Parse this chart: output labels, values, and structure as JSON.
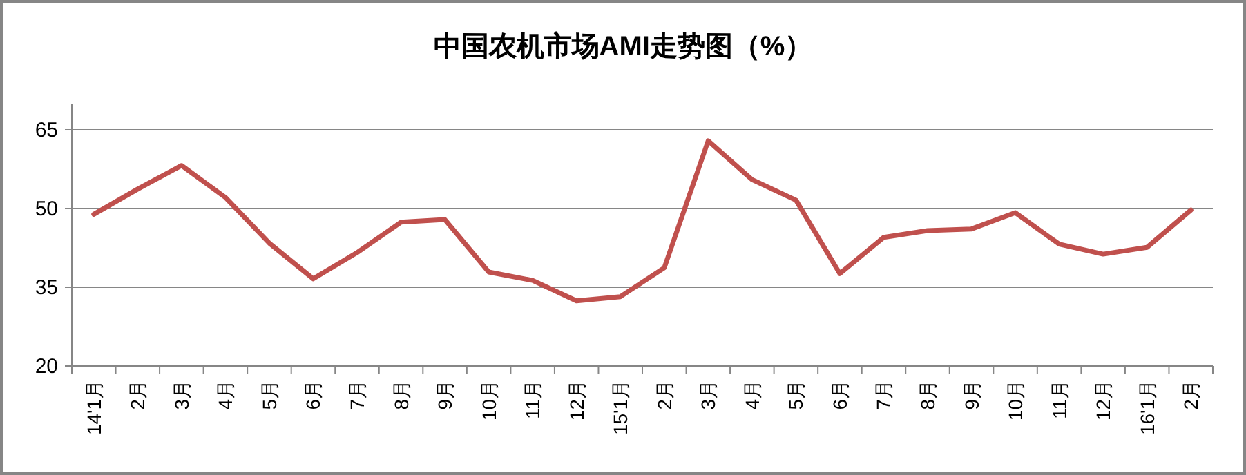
{
  "chart_data": {
    "type": "line",
    "title": "中国农机市场AMI走势图（%）",
    "categories": [
      "14'1月",
      "2月",
      "3月",
      "4月",
      "5月",
      "6月",
      "7月",
      "8月",
      "9月",
      "10月",
      "11月",
      "12月",
      "15'1月",
      "2月",
      "3月",
      "4月",
      "5月",
      "6月",
      "7月",
      "8月",
      "9月",
      "10月",
      "11月",
      "12月",
      "16'1月",
      "2月"
    ],
    "series": [
      {
        "color": "#c0504d",
        "values": [
          48.9,
          53.7,
          58.2,
          52.1,
          43.4,
          36.6,
          41.6,
          47.4,
          47.9,
          37.9,
          36.3,
          32.4,
          33.2,
          38.7,
          62.9,
          55.5,
          51.6,
          37.6,
          44.5,
          45.8,
          46.1,
          49.2,
          43.2,
          41.3,
          42.6,
          49.7
        ]
      }
    ],
    "ylim": [
      20,
      70
    ],
    "yticks": [
      20,
      35,
      50,
      65
    ],
    "grid": "y",
    "marker": "none",
    "line_style": "solid"
  }
}
